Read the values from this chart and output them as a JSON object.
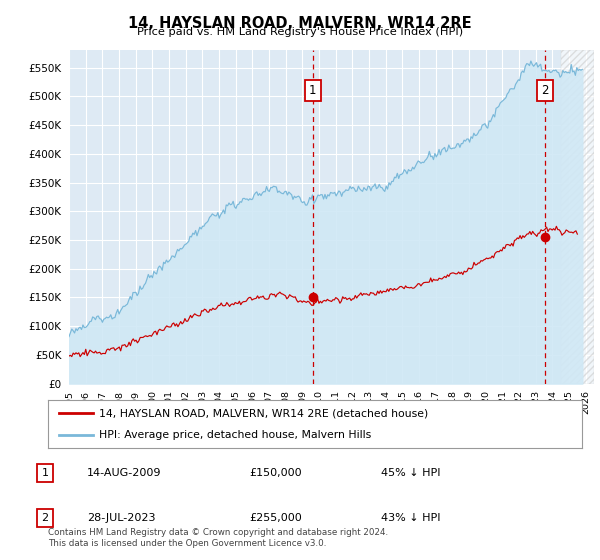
{
  "title": "14, HAYSLAN ROAD, MALVERN, WR14 2RE",
  "subtitle": "Price paid vs. HM Land Registry's House Price Index (HPI)",
  "ytick_values": [
    0,
    50000,
    100000,
    150000,
    200000,
    250000,
    300000,
    350000,
    400000,
    450000,
    500000,
    550000
  ],
  "ylim": [
    0,
    580000
  ],
  "xlim_start": 1995.0,
  "xlim_end": 2026.5,
  "xtick_years": [
    1995,
    1996,
    1997,
    1998,
    1999,
    2000,
    2001,
    2002,
    2003,
    2004,
    2005,
    2006,
    2007,
    2008,
    2009,
    2010,
    2011,
    2012,
    2013,
    2014,
    2015,
    2016,
    2017,
    2018,
    2019,
    2020,
    2021,
    2022,
    2023,
    2024,
    2025,
    2026
  ],
  "hpi_color": "#7ab8d9",
  "hpi_fill_color": "#d0e8f5",
  "price_color": "#cc0000",
  "vline_color": "#cc0000",
  "transaction1_year": 2009.62,
  "transaction1_price": 150000,
  "transaction1_label": "1",
  "transaction2_year": 2023.58,
  "transaction2_price": 255000,
  "transaction2_label": "2",
  "legend_red_label": "14, HAYSLAN ROAD, MALVERN, WR14 2RE (detached house)",
  "legend_blue_label": "HPI: Average price, detached house, Malvern Hills",
  "table_row1": [
    "1",
    "14-AUG-2009",
    "£150,000",
    "45% ↓ HPI"
  ],
  "table_row2": [
    "2",
    "28-JUL-2023",
    "£255,000",
    "43% ↓ HPI"
  ],
  "footer": "Contains HM Land Registry data © Crown copyright and database right 2024.\nThis data is licensed under the Open Government Licence v3.0.",
  "plot_bg_color": "#deeaf4",
  "grid_color": "#ffffff"
}
